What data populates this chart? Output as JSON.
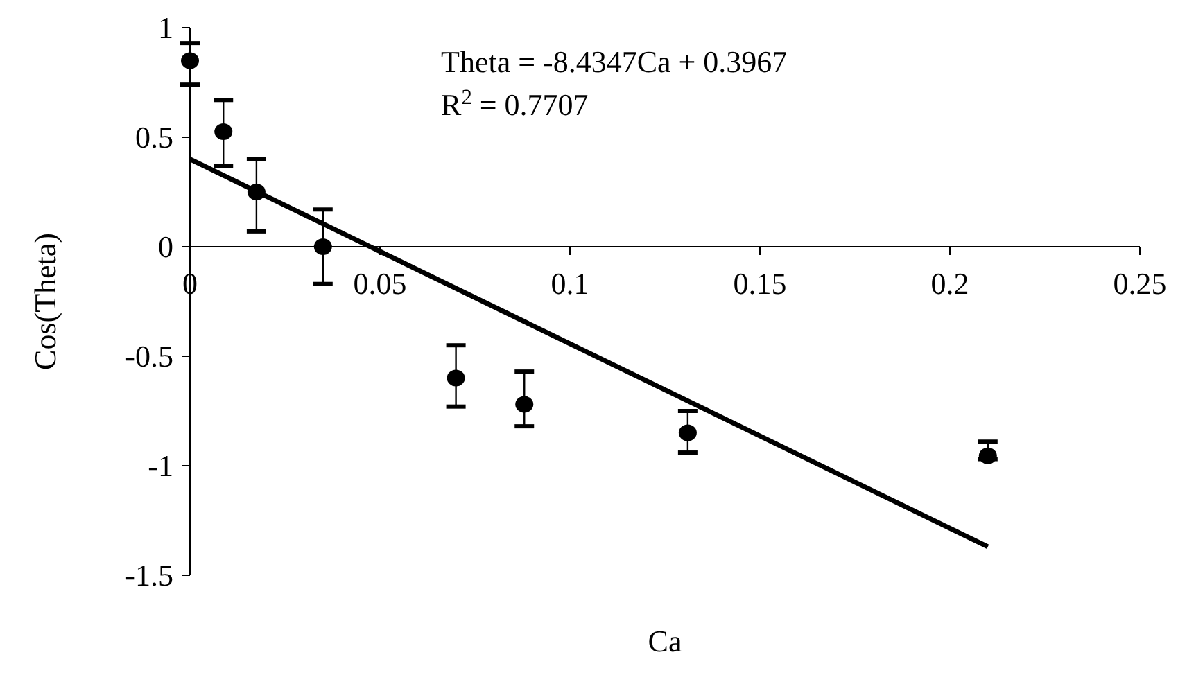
{
  "chart_data": {
    "type": "scatter",
    "xlabel": "Ca",
    "ylabel": "Cos(Theta)",
    "xlim": [
      0,
      0.25
    ],
    "xticks": [
      0,
      0.05,
      0.1,
      0.15,
      0.2,
      0.25
    ],
    "ylim": [
      -1.5,
      1
    ],
    "yticks": [
      -1.5,
      -1,
      -0.5,
      0,
      0.5,
      1
    ],
    "grid": false,
    "marker": "circle",
    "annotations": [
      "Theta = -8.4347Ca + 0.3967",
      "R$^{2}$ = 0.7707"
    ],
    "series": [
      {
        "color": "#000000",
        "x": [
          0,
          0.0088,
          0.0175,
          0.035,
          0.07,
          0.088,
          0.131,
          0.21
        ],
        "values": [
          0.85,
          0.525,
          0.25,
          0.0,
          -0.6,
          -0.72,
          -0.85,
          -0.955
        ],
        "errors": [
          [
            0.74,
            0.93
          ],
          [
            0.37,
            0.67
          ],
          [
            0.07,
            0.4
          ],
          [
            -0.17,
            0.17
          ],
          [
            -0.73,
            -0.45
          ],
          [
            -0.82,
            -0.57
          ],
          [
            -0.94,
            -0.75
          ],
          [
            -0.97,
            -0.89
          ]
        ]
      },
      {
        "type": "line",
        "color": "#000000",
        "line_style": "solid",
        "marker": "none",
        "x": [
          0,
          0.21
        ],
        "values": [
          0.4,
          -1.37
        ]
      }
    ]
  }
}
